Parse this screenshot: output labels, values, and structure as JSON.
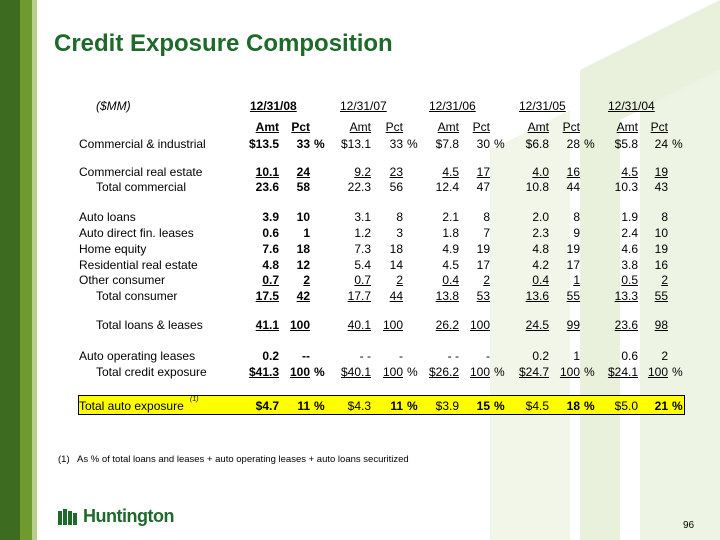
{
  "slide": {
    "title": "Credit Exposure Composition",
    "page_number": "96",
    "brand_name": "Huntington",
    "colors": {
      "brand_green": "#1d6a2a",
      "highlight": "#ffff00",
      "bar_dark": "#3d6b1f",
      "bar_mid": "#6f9a2e",
      "bar_light": "#b7cf8a"
    }
  },
  "table": {
    "unit_label": "($MM)",
    "periods": [
      "12/31/08",
      "12/31/07",
      "12/31/06",
      "12/31/05",
      "12/31/04"
    ],
    "sub_headers": {
      "amt": "Amt",
      "pct": "Pct"
    },
    "rows": [
      {
        "label": "Commercial & industrial",
        "amt": [
          "$13.5",
          "$13.1",
          "$7.8",
          "$6.8",
          "$5.8"
        ],
        "pct": [
          "33",
          "33",
          "30",
          "28",
          "24"
        ],
        "pct_sign": "%"
      },
      {
        "label": "Commercial real estate",
        "amt": [
          "10.1",
          "9.2",
          "4.5",
          "4.0",
          "4.5"
        ],
        "pct": [
          "24",
          "23",
          "17",
          "16",
          "19"
        ]
      },
      {
        "label": "Total commercial",
        "amt": [
          "23.6",
          "22.3",
          "12.4",
          "10.8",
          "10.3"
        ],
        "pct": [
          "58",
          "56",
          "47",
          "44",
          "43"
        ]
      },
      {
        "label": "Auto loans",
        "amt": [
          "3.9",
          "3.1",
          "2.1",
          "2.0",
          "1.9"
        ],
        "pct": [
          "10",
          "8",
          "8",
          "8",
          "8"
        ]
      },
      {
        "label": "Auto direct fin. leases",
        "amt": [
          "0.6",
          "1.2",
          "1.8",
          "2.3",
          "2.4"
        ],
        "pct": [
          "1",
          "3",
          "7",
          "9",
          "10"
        ]
      },
      {
        "label": "Home equity",
        "amt": [
          "7.6",
          "7.3",
          "4.9",
          "4.8",
          "4.6"
        ],
        "pct": [
          "18",
          "18",
          "19",
          "19",
          "19"
        ]
      },
      {
        "label": "Residential real estate",
        "amt": [
          "4.8",
          "5.4",
          "4.5",
          "4.2",
          "3.8"
        ],
        "pct": [
          "12",
          "14",
          "17",
          "17",
          "16"
        ]
      },
      {
        "label": "Other consumer",
        "amt": [
          "0.7",
          "0.7",
          "0.4",
          "0.4",
          "0.5"
        ],
        "pct": [
          "2",
          "2",
          "2",
          "1",
          "2"
        ]
      },
      {
        "label": "Total consumer",
        "amt": [
          "17.5",
          "17.7",
          "13.8",
          "13.6",
          "13.3"
        ],
        "pct": [
          "42",
          "44",
          "53",
          "55",
          "55"
        ]
      },
      {
        "label": "Total loans & leases",
        "amt": [
          "41.1",
          "40.1",
          "26.2",
          "24.5",
          "23.6"
        ],
        "pct": [
          "100",
          "100",
          "100",
          "99",
          "98"
        ]
      },
      {
        "label": "Auto operating leases",
        "amt": [
          "0.2",
          "- -",
          "- -",
          "0.2",
          "0.6"
        ],
        "pct": [
          "--",
          "-",
          "-",
          "1",
          "2"
        ]
      },
      {
        "label": "Total credit exposure",
        "amt": [
          "$41.3",
          "$40.1",
          "$26.2",
          "$24.7",
          "$24.1"
        ],
        "pct": [
          "100",
          "100",
          "100",
          "100",
          "100"
        ],
        "pct_sign": "%"
      },
      {
        "label": "Total auto exposure",
        "label_sup": "(1)",
        "amt": [
          "$4.7",
          "$4.3",
          "$3.9",
          "$4.5",
          "$5.0"
        ],
        "pct": [
          "11",
          "11",
          "15",
          "18",
          "21"
        ],
        "pct_sign": "%"
      }
    ]
  },
  "footnote": {
    "marker": "(1)",
    "text": "As % of total loans and leases + auto operating leases + auto loans securitized"
  }
}
